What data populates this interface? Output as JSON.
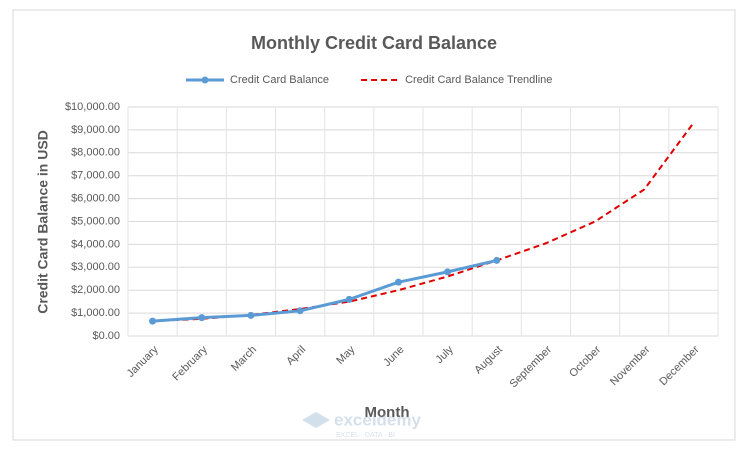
{
  "chart_data": {
    "type": "line",
    "title": "Monthly Credit Card Balance",
    "x_label": "Month",
    "y_label": "Credit Card Balance in USD",
    "watermark": {
      "name": "exceldemy",
      "tagline": "EXCEL · DATA · BI"
    },
    "categories": [
      "January",
      "February",
      "March",
      "April",
      "May",
      "June",
      "July",
      "August",
      "September",
      "October",
      "November",
      "December"
    ],
    "series": [
      {
        "name": "Credit Card Balance",
        "color": "#5b9bd5",
        "dashed": false,
        "markers": true,
        "values": [
          650,
          800,
          900,
          1100,
          1600,
          2350,
          2800,
          3300,
          null,
          null,
          null,
          null
        ]
      },
      {
        "name": "Credit Card Balance Trendline",
        "color": "#e00000",
        "dashed": true,
        "markers": false,
        "values": [
          650,
          750,
          920,
          1180,
          1500,
          2000,
          2600,
          3300,
          4050,
          5000,
          6400,
          9300
        ]
      }
    ],
    "ylim": [
      0,
      10000
    ],
    "yticks": [
      {
        "value": 0,
        "label": "$0.00"
      },
      {
        "value": 1000,
        "label": "$1,000.00"
      },
      {
        "value": 2000,
        "label": "$2,000.00"
      },
      {
        "value": 3000,
        "label": "$3,000.00"
      },
      {
        "value": 4000,
        "label": "$4,000.00"
      },
      {
        "value": 5000,
        "label": "$5,000.00"
      },
      {
        "value": 6000,
        "label": "$6,000.00"
      },
      {
        "value": 7000,
        "label": "$7,000.00"
      },
      {
        "value": 8000,
        "label": "$8,000.00"
      },
      {
        "value": 9000,
        "label": "$9,000.00"
      },
      {
        "value": 10000,
        "label": "$10,000.00"
      }
    ],
    "grid": true,
    "legend": "top"
  }
}
